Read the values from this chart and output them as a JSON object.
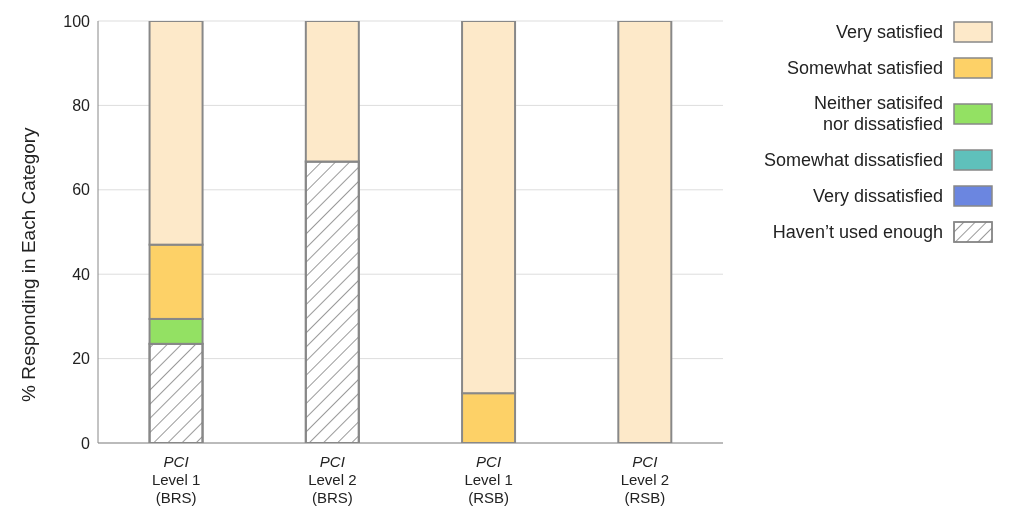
{
  "chart_data": {
    "type": "bar",
    "stacked": true,
    "ylabel": "% Responding in Each Category",
    "categories": [
      "PCI\nLevel 1\n(BRS)",
      "PCI\nLevel 2\n(BRS)",
      "PCI\nLevel 1\n(RSB)",
      "PCI\nLevel 2\n(RSB)"
    ],
    "series": [
      {
        "name": "Haven’t used enough",
        "color": "#ffffff",
        "values": [
          23.5,
          66.7,
          0,
          0
        ]
      },
      {
        "name": "Very dissatisfied",
        "color": "#6b86e0",
        "values": [
          0,
          0,
          0,
          0
        ]
      },
      {
        "name": "Somewhat dissatisfied",
        "color": "#5fc0bb",
        "values": [
          0,
          0,
          0,
          0
        ]
      },
      {
        "name": "Neither satisifed\nnor dissatisfied",
        "color": "#93e163",
        "values": [
          5.9,
          0,
          0,
          0
        ]
      },
      {
        "name": "Somewhat satisfied",
        "color": "#fdd167",
        "values": [
          17.6,
          0,
          11.8,
          0
        ]
      },
      {
        "name": "Very satisfied",
        "color": "#fde9c9",
        "values": [
          53,
          33.3,
          88.2,
          100
        ]
      }
    ],
    "ylim": [
      0,
      100
    ],
    "yticks": [
      0,
      20,
      40,
      60,
      80,
      100
    ],
    "grid": "y",
    "legend": "right"
  }
}
